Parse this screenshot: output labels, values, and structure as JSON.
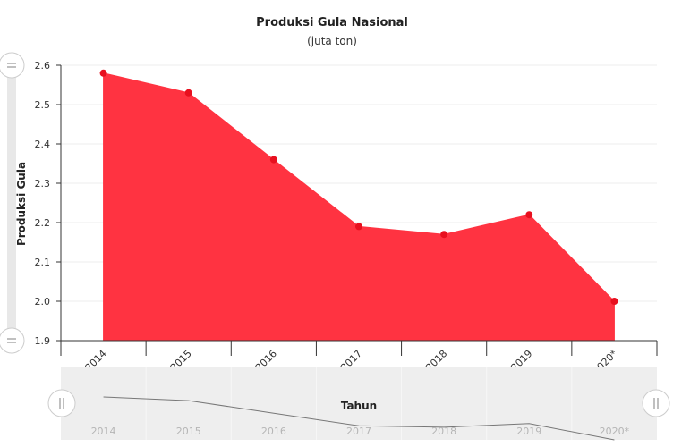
{
  "chart_data": {
    "type": "area",
    "title": "Produksi Gula Nasional",
    "subtitle": "(juta ton)",
    "xlabel": "Tahun",
    "ylabel": "Produksi Gula",
    "categories": [
      "2014",
      "2015",
      "2016",
      "2017",
      "2018",
      "2019",
      "2020*"
    ],
    "values": [
      2.58,
      2.53,
      2.36,
      2.19,
      2.17,
      2.22,
      2.0
    ],
    "ylim": [
      1.9,
      2.6
    ],
    "yticks": [
      "1.9",
      "2.0",
      "2.1",
      "2.2",
      "2.3",
      "2.4",
      "2.5",
      "2.6"
    ],
    "grid": true,
    "legend": "none",
    "colors": {
      "area": "#ff3341",
      "marker": "#e8101f",
      "axis": "#333333",
      "grid": "#eeeeee",
      "navigator_bg": "#eeeeee",
      "navigator_line": "#777777"
    }
  }
}
